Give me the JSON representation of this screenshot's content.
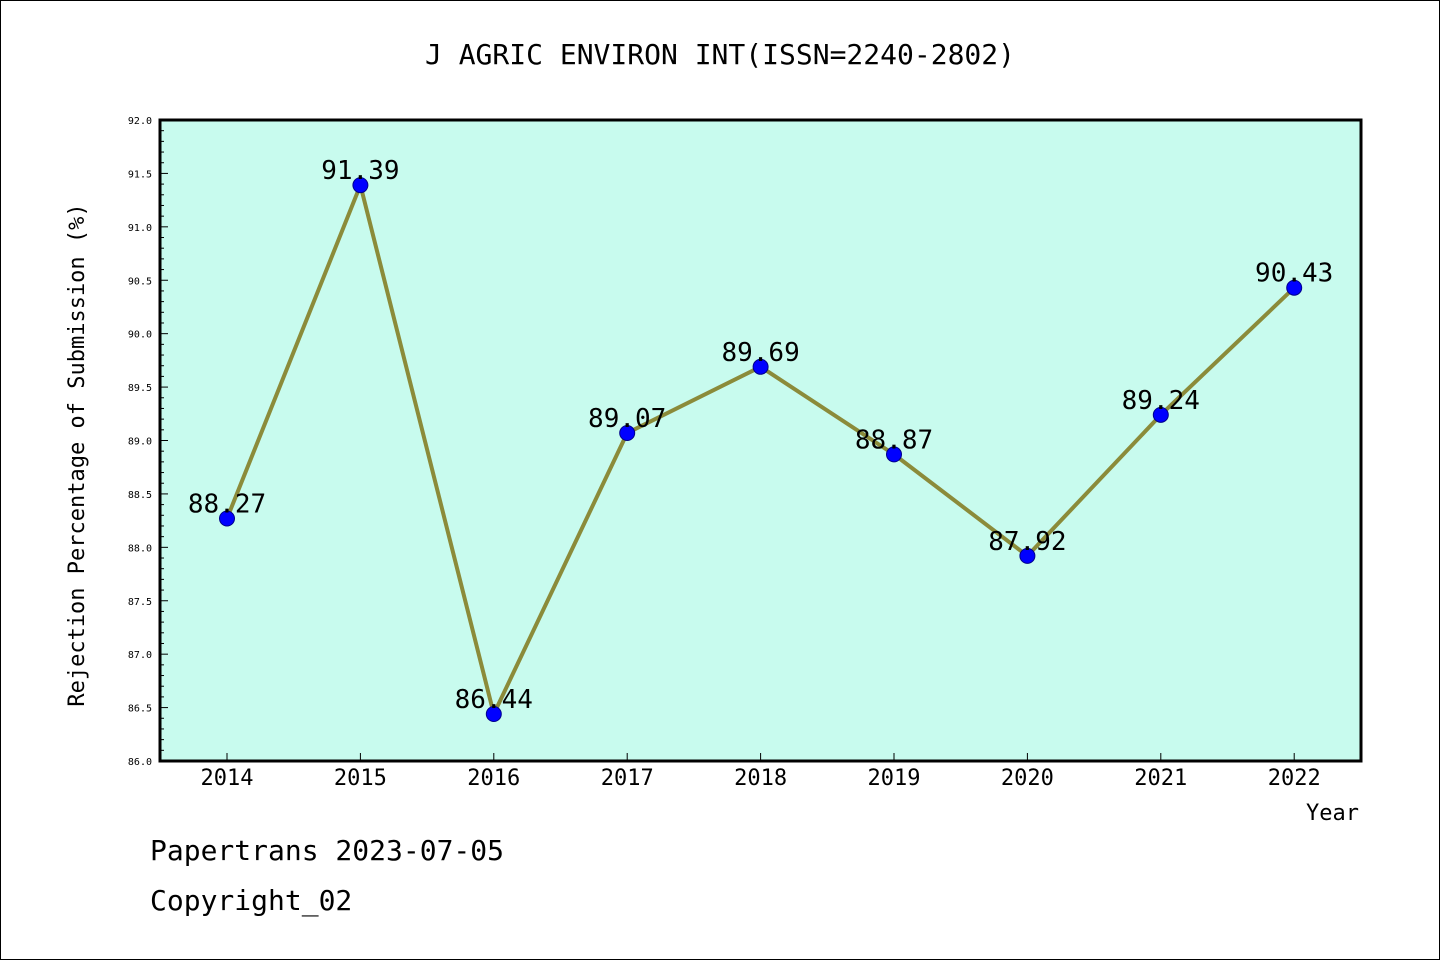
{
  "chart_data": {
    "type": "line",
    "title": "J AGRIC ENVIRON INT(ISSN=2240-2802)",
    "xlabel": "Year",
    "ylabel": "Rejection Percentage of Submission (%)",
    "categories": [
      "2014",
      "2015",
      "2016",
      "2017",
      "2018",
      "2019",
      "2020",
      "2021",
      "2022"
    ],
    "series": [
      {
        "values": [
          88.27,
          91.39,
          86.44,
          89.07,
          89.69,
          88.87,
          87.92,
          89.24,
          90.43
        ],
        "labels": [
          "88.27",
          "91.39",
          "86.44",
          "89.07",
          "89.69",
          "88.87",
          "87.92",
          "89.24",
          "90.43"
        ]
      }
    ],
    "ylim": [
      86.0,
      92.0
    ],
    "yticks": [
      "86.0",
      "86.5",
      "87.0",
      "87.5",
      "88.0",
      "88.5",
      "89.0",
      "89.5",
      "90.0",
      "90.5",
      "91.0",
      "91.5",
      "92.0"
    ],
    "grid": false,
    "colors": {
      "plot_background": "#c8fbee",
      "line": "#8b8b3a",
      "marker": "#0000ff"
    }
  },
  "footer": {
    "line1": "Papertrans 2023-07-05",
    "line2": "Copyright_02"
  }
}
